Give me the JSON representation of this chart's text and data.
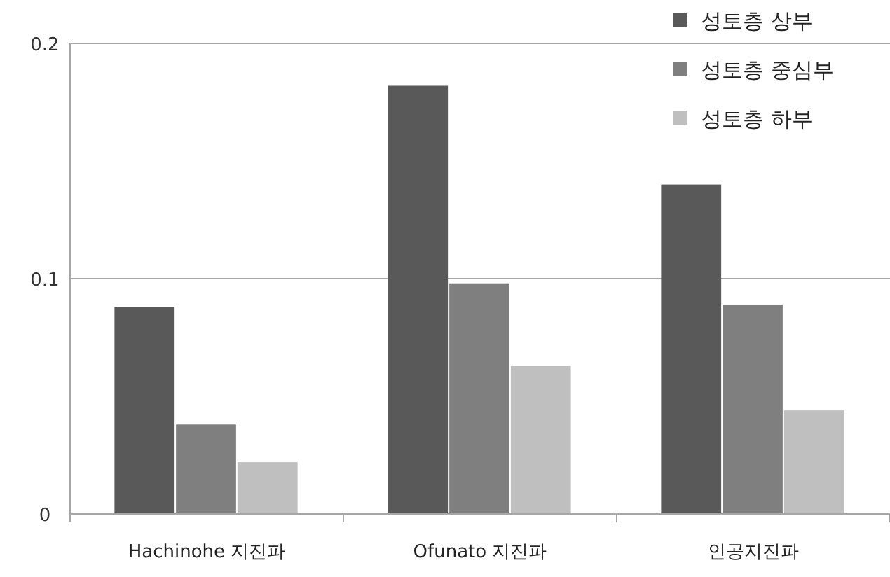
{
  "chart_data": {
    "type": "bar",
    "categories": [
      "Hachinohe 지진파",
      "Ofunato 지진파",
      "인공지진파"
    ],
    "series": [
      {
        "name": "성토층 상부",
        "color": "#595959",
        "values": [
          0.088,
          0.182,
          0.14
        ]
      },
      {
        "name": "성토층 중심부",
        "color": "#7f7f7f",
        "values": [
          0.038,
          0.098,
          0.089
        ]
      },
      {
        "name": "성토층 하부",
        "color": "#bfbfbf",
        "values": [
          0.022,
          0.063,
          0.044
        ]
      }
    ],
    "ylim": [
      0,
      0.2
    ],
    "yticks": [
      0,
      0.1,
      0.2
    ],
    "grid": "y",
    "legend": "top right"
  }
}
